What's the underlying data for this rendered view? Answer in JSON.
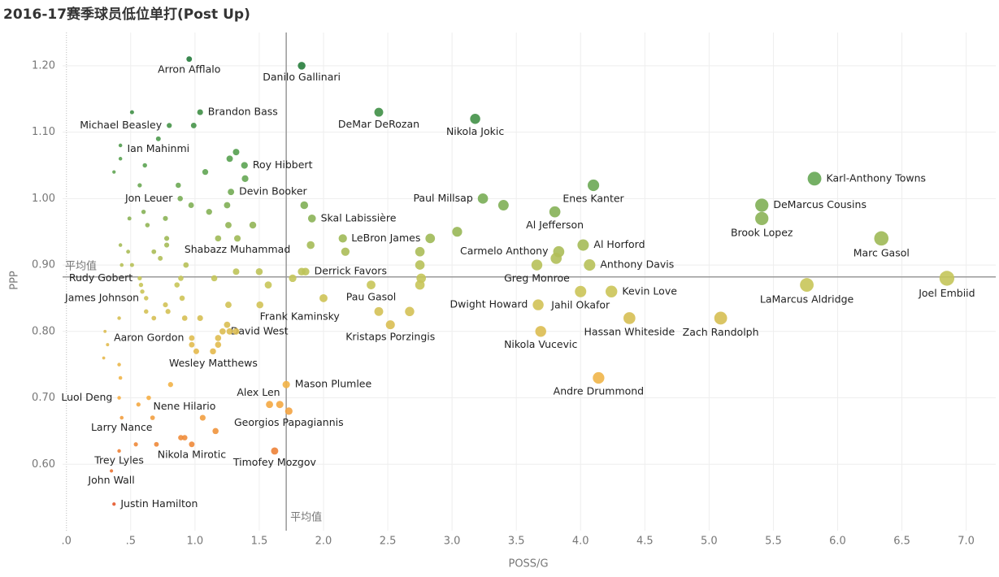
{
  "chart_data": {
    "type": "scatter",
    "title": "2016-17赛季球员低位单打(Post Up)",
    "xlabel": "POSS/G",
    "ylabel": "PPP",
    "xlim": [
      -0.03,
      7.23
    ],
    "ylim": [
      0.5,
      1.25
    ],
    "xticks": [
      {
        "value": 0,
        "label": ".0"
      },
      {
        "value": 0.5,
        "label": ".5"
      },
      {
        "value": 1,
        "label": "1.0"
      },
      {
        "value": 1.5,
        "label": "1.5"
      },
      {
        "value": 2,
        "label": "2.0"
      },
      {
        "value": 2.5,
        "label": "2.5"
      },
      {
        "value": 3,
        "label": "3.0"
      },
      {
        "value": 3.5,
        "label": "3.5"
      },
      {
        "value": 4,
        "label": "4.0"
      },
      {
        "value": 4.5,
        "label": "4.5"
      },
      {
        "value": 5,
        "label": "5.0"
      },
      {
        "value": 5.5,
        "label": "5.5"
      },
      {
        "value": 6,
        "label": "6.0"
      },
      {
        "value": 6.5,
        "label": "6.5"
      },
      {
        "value": 7,
        "label": "7.0"
      }
    ],
    "yticks": [
      {
        "value": 0.6,
        "label": "0.60"
      },
      {
        "value": 0.7,
        "label": "0.70"
      },
      {
        "value": 0.8,
        "label": "0.80"
      },
      {
        "value": 0.9,
        "label": "0.90"
      },
      {
        "value": 1.0,
        "label": "1.00"
      },
      {
        "value": 1.1,
        "label": "1.10"
      },
      {
        "value": 1.2,
        "label": "1.20"
      }
    ],
    "grid": true,
    "x_ref": {
      "value": 1.71,
      "label": "平均值"
    },
    "y_ref": {
      "value": 0.882,
      "label": "平均值"
    },
    "colors": [
      "#e4572a",
      "#f6b246",
      "#c7c65a",
      "#5ea553",
      "#237a3b"
    ],
    "x": [
      0.955,
      1.83,
      1.04,
      0.8,
      2.43,
      3.18,
      0.715,
      1.385,
      5.82,
      0.885,
      1.28,
      3.24,
      4.1,
      5.41,
      1.91,
      3.8,
      5.41,
      2.83,
      6.34,
      4.02,
      1.33,
      3.83,
      4.07,
      1.86,
      0.57,
      6.85,
      3.66,
      4.24,
      5.76,
      2.37,
      0.62,
      3.67,
      4.0,
      1.505,
      4.38,
      5.09,
      2.52,
      0.975,
      1.215,
      3.69,
      1.01,
      1.71,
      4.14,
      1.58,
      0.41,
      0.64,
      1.73,
      0.43,
      0.975,
      1.62,
      0.41,
      0.35,
      0.37,
      0.51,
      0.99,
      0.42,
      0.42,
      0.37,
      0.61,
      1.08,
      1.32,
      1.27,
      1.39,
      0.57,
      0.87,
      0.97,
      1.25,
      1.85,
      0.6,
      1.11,
      0.77,
      0.49,
      0.63,
      1.26,
      1.45,
      0.42,
      0.78,
      0.78,
      1.18,
      1.9,
      2.15,
      2.17,
      2.75,
      0.68,
      0.48,
      0.73,
      0.93,
      0.43,
      0.51,
      1.32,
      1.5,
      1.83,
      2.75,
      3.81,
      3.04,
      3.4,
      1.15,
      0.89,
      1.57,
      1.76,
      2.76,
      2.75,
      0.86,
      0.58,
      0.59,
      0.9,
      1.26,
      2.0,
      0.77,
      0.62,
      0.79,
      0.68,
      0.92,
      1.04,
      0.41,
      1.25,
      2.43,
      2.67,
      0.3,
      1.27,
      1.32,
      1.18,
      0.975,
      1.18,
      0.32,
      1.14,
      0.29,
      0.41,
      0.42,
      0.81,
      0.56,
      1.66,
      0.67,
      1.06,
      1.16,
      0.54,
      0.7,
      0.89,
      0.92
    ],
    "values": [
      1.21,
      1.2,
      1.13,
      1.11,
      1.13,
      1.12,
      1.09,
      1.05,
      1.03,
      1.0,
      1.01,
      1.0,
      1.02,
      0.99,
      0.97,
      0.98,
      0.97,
      0.94,
      0.94,
      0.93,
      0.94,
      0.92,
      0.9,
      0.89,
      0.88,
      0.88,
      0.9,
      0.86,
      0.87,
      0.87,
      0.85,
      0.84,
      0.86,
      0.84,
      0.82,
      0.82,
      0.81,
      0.79,
      0.8,
      0.8,
      0.77,
      0.72,
      0.73,
      0.69,
      0.7,
      0.7,
      0.68,
      0.67,
      0.63,
      0.62,
      0.62,
      0.59,
      0.54,
      1.13,
      1.11,
      1.08,
      1.06,
      1.04,
      1.05,
      1.04,
      1.07,
      1.06,
      1.03,
      1.02,
      1.02,
      0.99,
      0.99,
      0.99,
      0.98,
      0.98,
      0.97,
      0.97,
      0.96,
      0.96,
      0.96,
      0.93,
      0.94,
      0.93,
      0.94,
      0.93,
      0.94,
      0.92,
      0.92,
      0.92,
      0.92,
      0.91,
      0.9,
      0.9,
      0.9,
      0.89,
      0.89,
      0.89,
      0.9,
      0.91,
      0.95,
      0.99,
      0.88,
      0.88,
      0.87,
      0.88,
      0.88,
      0.87,
      0.87,
      0.87,
      0.86,
      0.85,
      0.84,
      0.85,
      0.84,
      0.83,
      0.83,
      0.82,
      0.82,
      0.82,
      0.82,
      0.81,
      0.83,
      0.83,
      0.8,
      0.8,
      0.8,
      0.79,
      0.78,
      0.78,
      0.78,
      0.77,
      0.76,
      0.75,
      0.73,
      0.72,
      0.69,
      0.69,
      0.67,
      0.67,
      0.65,
      0.63,
      0.63,
      0.64,
      0.64
    ],
    "labels": [
      "Arron Afflalo",
      "Danilo Gallinari",
      "Brandon Bass",
      "Michael Beasley",
      "DeMar DeRozan",
      "Nikola Jokic",
      "Ian Mahinmi",
      "Roy Hibbert",
      "Karl-Anthony Towns",
      "Jon Leuer",
      "Devin Booker",
      "Paul Millsap",
      "Enes Kanter",
      "DeMarcus Cousins",
      "Skal Labissière",
      "Al Jefferson",
      "Brook Lopez",
      "LeBron James",
      "Marc Gasol",
      "Al Horford",
      "Shabazz Muhammad",
      "Carmelo Anthony",
      "Anthony Davis",
      "Derrick Favors",
      "Rudy Gobert",
      "Joel Embiid",
      "Greg Monroe",
      "Kevin Love",
      "LaMarcus Aldridge",
      "Pau Gasol",
      "James Johnson",
      "Dwight Howard",
      "Jahil Okafor",
      "Frank Kaminsky",
      "Hassan Whiteside",
      "Zach Randolph",
      "Kristaps Porzingis",
      "Aaron Gordon",
      "David West",
      "Nikola Vucevic",
      "Wesley Matthews",
      "Mason Plumlee",
      "Andre Drummond",
      "Alex Len",
      "Luol Deng",
      "Nene Hilario",
      "Georgios Papagiannis",
      "Larry Nance",
      "Nikola Mirotic",
      "Timofey Mozgov",
      "Trey Lyles",
      "John Wall",
      "Justin Hamilton",
      null,
      null,
      null,
      null,
      null,
      null,
      null,
      null,
      null,
      null,
      null,
      null,
      null,
      null,
      null,
      null,
      null,
      null,
      null,
      null,
      null,
      null,
      null,
      null,
      null,
      null,
      null,
      null,
      null,
      null,
      null,
      null,
      null,
      null,
      null,
      null,
      null,
      null,
      null,
      null,
      null,
      null,
      null,
      null,
      null,
      null,
      null,
      null,
      null,
      null,
      null,
      null,
      null,
      null,
      null,
      null,
      null,
      null,
      null,
      null,
      null,
      null,
      null,
      null,
      null,
      null,
      null,
      null,
      null,
      null,
      null,
      null,
      null,
      null,
      null,
      null,
      null,
      null,
      null,
      null,
      null,
      null,
      null,
      null,
      null,
      null,
      null
    ]
  }
}
